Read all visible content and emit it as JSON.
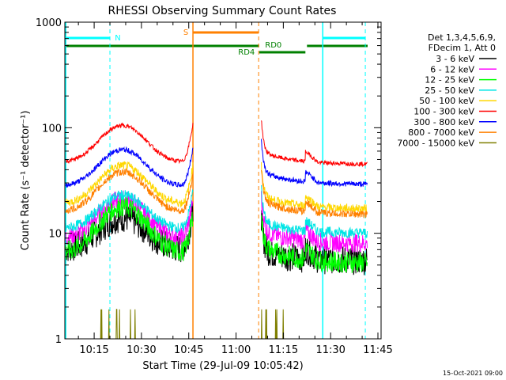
{
  "chart_data": {
    "type": "line",
    "title": "RHESSI Observing Summary Count Rates",
    "xlabel": "Start Time (29-Jul-09 10:05:42)",
    "ylabel": "Count Rate (s⁻¹ detector⁻¹)",
    "y_scale": "log",
    "ylim": [
      1,
      1000
    ],
    "xlim": [
      "10:05:42",
      "11:46:00"
    ],
    "x_ticks": [
      "10:15",
      "10:30",
      "10:45",
      "11:00",
      "11:15",
      "11:30",
      "11:45"
    ],
    "y_ticks": [
      "1",
      "10",
      "100",
      "1000"
    ],
    "legend_position": "right",
    "legend_header": [
      "Det 1,3,4,5,6,9,",
      "FDecim 1, Att 0"
    ],
    "series": [
      {
        "name": "3 - 6 keV",
        "color": "#000000",
        "base": 7,
        "peak": 14,
        "tail": 5.5,
        "noise": 0.14
      },
      {
        "name": "6 - 12 keV",
        "color": "#ff00ff",
        "base": 9,
        "peak": 21,
        "tail": 8,
        "noise": 0.09
      },
      {
        "name": "12 - 25 keV",
        "color": "#00ff00",
        "base": 6.5,
        "peak": 18,
        "tail": 5.2,
        "noise": 0.1
      },
      {
        "name": "25 - 50 keV",
        "color": "#00e5e5",
        "base": 11,
        "peak": 23,
        "tail": 10,
        "noise": 0.05
      },
      {
        "name": "50 - 100 keV",
        "color": "#ffd700",
        "base": 19,
        "peak": 44,
        "tail": 17,
        "noise": 0.04
      },
      {
        "name": "100 - 300 keV",
        "color": "#ff0000",
        "base": 47,
        "peak": 105,
        "tail": 45,
        "noise": 0.02
      },
      {
        "name": "300 - 800 keV",
        "color": "#0000ff",
        "base": 28,
        "peak": 62,
        "tail": 29,
        "noise": 0.025
      },
      {
        "name": "800 - 7000 keV",
        "color": "#ff8000",
        "base": 16,
        "peak": 38,
        "tail": 15,
        "noise": 0.035
      },
      {
        "name": "7000 - 15000 keV",
        "color": "#7f7f00",
        "base": 1,
        "peak": 1.9,
        "tail": 1,
        "noise": 0.1
      }
    ],
    "annotations": {
      "night_label": "N",
      "saa_label": "S",
      "rd0_label": "RD0",
      "rd4_label": "RD4"
    },
    "colors": {
      "night": "#00ffff",
      "saa": "#ff8000",
      "rd": "#008000",
      "axis": "#000000"
    }
  },
  "footer": {
    "timestamp": "15-Oct-2021 09:00"
  }
}
